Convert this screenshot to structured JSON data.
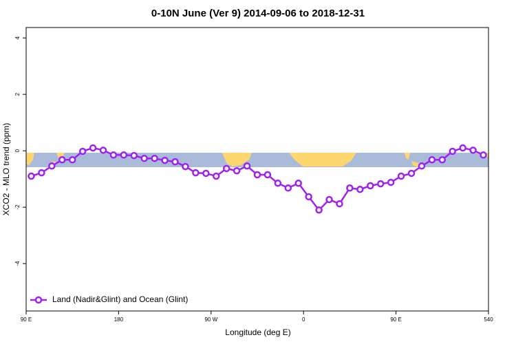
{
  "chart_data": {
    "type": "line",
    "title": "0-10N June (Ver 9)   2014-09-06 to 2018-12-31",
    "x_label": "Longitude (deg E)",
    "y_label": "XCO2 - MLO trend (ppm)",
    "x": [
      95,
      105,
      115,
      125,
      135,
      145,
      155,
      165,
      175,
      185,
      195,
      205,
      215,
      225,
      235,
      245,
      255,
      265,
      275,
      285,
      295,
      305,
      315,
      325,
      335,
      345,
      355,
      365,
      375,
      385,
      395,
      405,
      415,
      425,
      435,
      445,
      455,
      465,
      475,
      485,
      495,
      505,
      515,
      525,
      535
    ],
    "series": [
      {
        "name": "Land (Nadir&Glint) and Ocean (Glint)",
        "color": "#a020f0",
        "values": [
          -0.9,
          -0.78,
          -0.54,
          -0.32,
          -0.32,
          -0.02,
          0.1,
          0.02,
          -0.15,
          -0.15,
          -0.17,
          -0.27,
          -0.27,
          -0.34,
          -0.39,
          -0.56,
          -0.78,
          -0.8,
          -0.9,
          -0.63,
          -0.71,
          -0.54,
          -0.85,
          -0.85,
          -1.15,
          -1.32,
          -1.15,
          -1.63,
          -2.1,
          -1.73,
          -1.88,
          -1.32,
          -1.37,
          -1.24,
          -1.17,
          -1.12,
          -0.9,
          -0.8,
          -0.54,
          -0.32,
          -0.32,
          -0.02,
          0.1,
          0.02,
          -0.15
        ]
      }
    ],
    "xlim": [
      90,
      540
    ],
    "xticks": [
      {
        "value": 90,
        "label": "90 E"
      },
      180,
      {
        "value": 270,
        "label": "90 W"
      },
      {
        "value": 360,
        "label": "0"
      },
      {
        "value": 450,
        "label": "90 E"
      },
      540
    ],
    "ylim": [
      -5.68,
      4.37
    ],
    "yticks": [
      4,
      2,
      0,
      -2,
      -4
    ],
    "legend": "bottom-left"
  }
}
